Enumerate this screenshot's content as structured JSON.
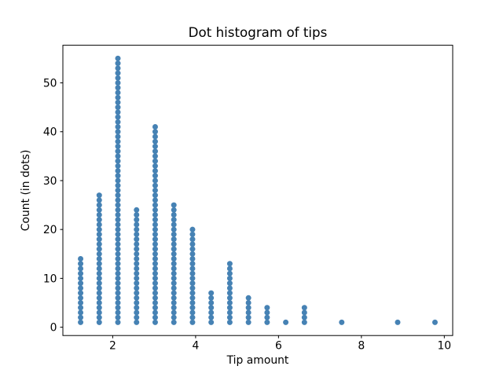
{
  "window": {
    "background_color": "#ffffff",
    "text_color": "#000000"
  },
  "chart_data": {
    "type": "scatter",
    "subtype": "dot-histogram",
    "title": "Dot histogram of tips",
    "xlabel": "Tip amount",
    "ylabel": "Count (in dots)",
    "x_tick_values": [
      2,
      4,
      6,
      8,
      10
    ],
    "x_tick_labels": [
      "2",
      "4",
      "6",
      "8",
      "10"
    ],
    "y_tick_values": [
      0,
      10,
      20,
      30,
      40,
      50
    ],
    "y_tick_labels": [
      "0",
      "10",
      "20",
      "30",
      "40",
      "50"
    ],
    "xlim": [
      0.7975,
      10.2025
    ],
    "ylim": [
      -1.7,
      57.7
    ],
    "grid": false,
    "legend": null,
    "dot_color": "#4682b4",
    "dot_radius_px": 3.5,
    "categories": [
      1.225,
      1.675,
      2.125,
      2.575,
      3.025,
      3.475,
      3.925,
      4.375,
      4.825,
      5.275,
      5.725,
      6.175,
      6.625,
      7.525,
      8.875,
      9.775
    ],
    "values": [
      14,
      27,
      55,
      24,
      41,
      25,
      20,
      7,
      13,
      6,
      4,
      1,
      4,
      1,
      1,
      1
    ]
  }
}
